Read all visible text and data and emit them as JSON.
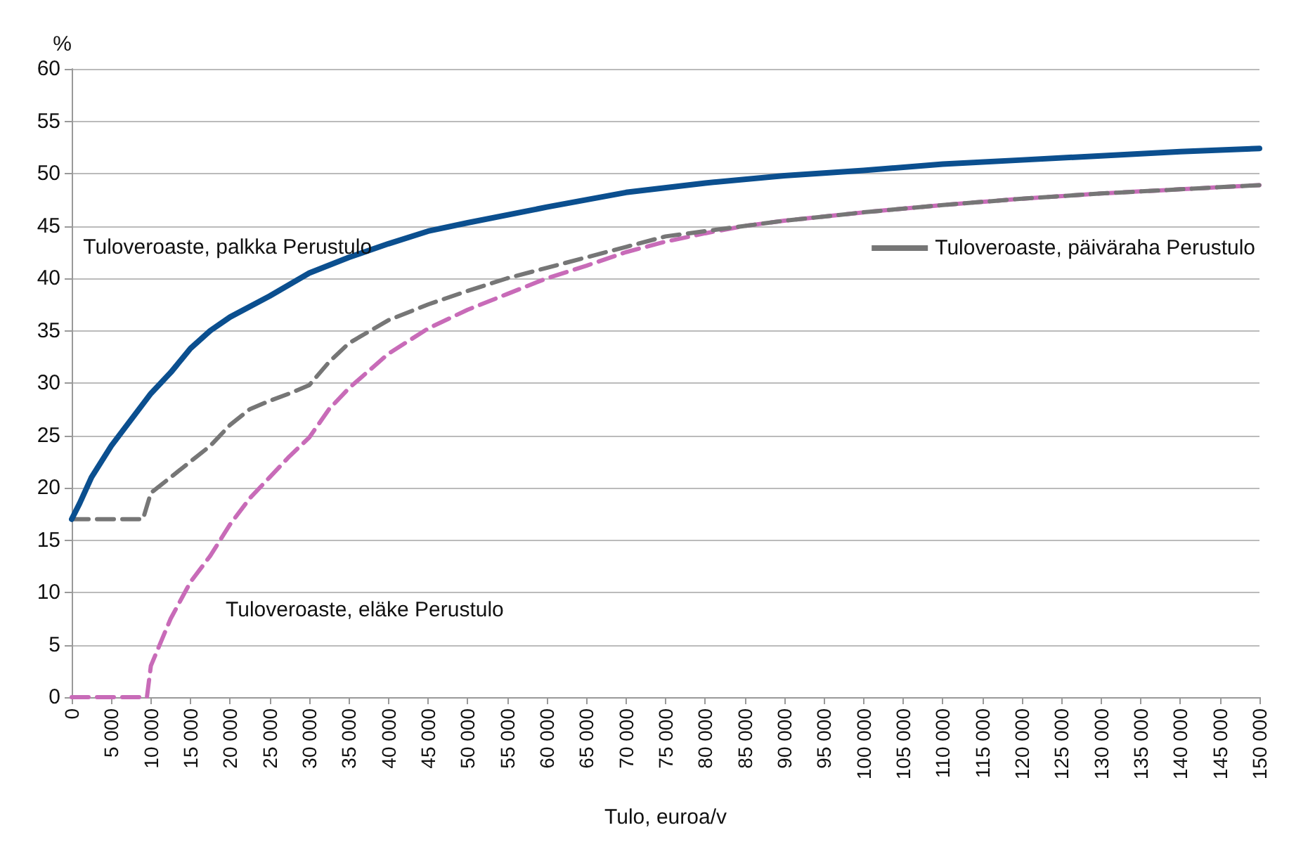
{
  "chart_data": {
    "type": "line",
    "ylabel": "%",
    "xlabel": "Tulo, euroa/v",
    "grid": "y",
    "marker": "none",
    "legend": "right",
    "xlim": [
      0,
      150000
    ],
    "ylim": [
      0,
      60
    ],
    "yticks": [
      0,
      5,
      10,
      15,
      20,
      25,
      30,
      35,
      40,
      45,
      50,
      55,
      60
    ],
    "xticks": [
      {
        "value": 0,
        "label": "0"
      },
      {
        "value": 5000,
        "label": "5 000"
      },
      {
        "value": 10000,
        "label": "10 000"
      },
      {
        "value": 15000,
        "label": "15 000"
      },
      {
        "value": 20000,
        "label": "20 000"
      },
      {
        "value": 25000,
        "label": "25 000"
      },
      {
        "value": 30000,
        "label": "30 000"
      },
      {
        "value": 35000,
        "label": "35 000"
      },
      {
        "value": 40000,
        "label": "40 000"
      },
      {
        "value": 45000,
        "label": "45 000"
      },
      {
        "value": 50000,
        "label": "50 000"
      },
      {
        "value": 55000,
        "label": "55 000"
      },
      {
        "value": 60000,
        "label": "60 000"
      },
      {
        "value": 65000,
        "label": "65 000"
      },
      {
        "value": 70000,
        "label": "70 000"
      },
      {
        "value": 75000,
        "label": "75 000"
      },
      {
        "value": 80000,
        "label": "80 000"
      },
      {
        "value": 85000,
        "label": "85 000"
      },
      {
        "value": 90000,
        "label": "90 000"
      },
      {
        "value": 95000,
        "label": "95 000"
      },
      {
        "value": 100000,
        "label": "100 000"
      },
      {
        "value": 105000,
        "label": "105 000"
      },
      {
        "value": 110000,
        "label": "110 000"
      },
      {
        "value": 115000,
        "label": "115 000"
      },
      {
        "value": 120000,
        "label": "120 000"
      },
      {
        "value": 125000,
        "label": "125 000"
      },
      {
        "value": 130000,
        "label": "130 000"
      },
      {
        "value": 135000,
        "label": "135 000"
      },
      {
        "value": 140000,
        "label": "140 000"
      },
      {
        "value": 145000,
        "label": "145 000"
      },
      {
        "value": 150000,
        "label": "150 000"
      }
    ],
    "series": [
      {
        "name": "Tuloveroaste, palkka Perustulo",
        "color": "#0b4f8f",
        "line_style": "solid",
        "x": [
          0,
          1000,
          2500,
          5000,
          7500,
          10000,
          12500,
          15000,
          17500,
          20000,
          25000,
          30000,
          35000,
          40000,
          45000,
          50000,
          60000,
          70000,
          80000,
          90000,
          100000,
          110000,
          120000,
          130000,
          140000,
          150000
        ],
        "values": [
          17,
          18.5,
          21,
          24,
          26.5,
          29,
          31,
          33.3,
          35,
          36.3,
          38.3,
          40.5,
          42,
          43.3,
          44.5,
          45.3,
          46.8,
          48.2,
          49.1,
          49.8,
          50.3,
          50.9,
          51.3,
          51.7,
          52.1,
          52.4
        ]
      },
      {
        "name": "Tuloveroaste, päiväraha Perustulo",
        "color": "#767676",
        "line_style": "dashed",
        "x": [
          0,
          9000,
          10000,
          12500,
          15000,
          17500,
          20000,
          22500,
          25000,
          27500,
          30000,
          32500,
          35000,
          40000,
          45000,
          50000,
          55000,
          60000,
          65000,
          70000,
          75000,
          80000,
          85000,
          90000,
          100000,
          110000,
          120000,
          130000,
          140000,
          150000
        ],
        "values": [
          17,
          17,
          19.5,
          21,
          22.5,
          24,
          26,
          27.5,
          28.3,
          29,
          29.8,
          32,
          33.8,
          36,
          37.5,
          38.8,
          40,
          41,
          42,
          43,
          44,
          44.5,
          45,
          45.5,
          46.3,
          47,
          47.6,
          48.1,
          48.5,
          48.9
        ]
      },
      {
        "name": "Tuloveroaste, eläke Perustulo",
        "color": "#c86bb8",
        "line_style": "dashed",
        "x": [
          0,
          9500,
          10000,
          12500,
          15000,
          17500,
          20000,
          22500,
          25000,
          27500,
          30000,
          32500,
          35000,
          40000,
          45000,
          50000,
          55000,
          60000,
          65000,
          70000,
          75000,
          80000,
          85000,
          90000,
          100000,
          110000,
          120000,
          130000,
          140000,
          150000
        ],
        "values": [
          0,
          0,
          3,
          7.5,
          11,
          13.5,
          16.5,
          19,
          21,
          23,
          24.8,
          27.5,
          29.5,
          32.8,
          35.2,
          37,
          38.5,
          40,
          41.2,
          42.5,
          43.5,
          44.3,
          45,
          45.5,
          46.3,
          47,
          47.6,
          48.1,
          48.5,
          48.9
        ]
      }
    ]
  }
}
